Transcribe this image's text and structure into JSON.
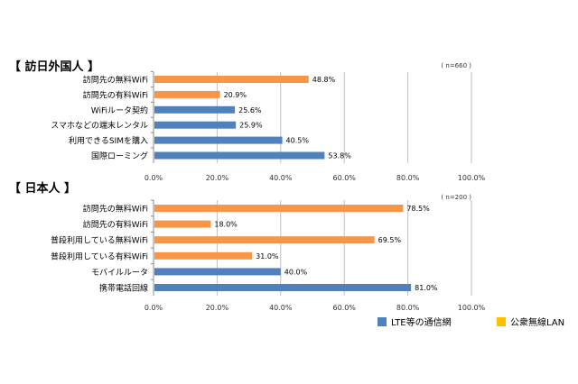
{
  "colors": {
    "lte": "#4F81BD",
    "wifi": "#F79646",
    "legend_wifi": "#FFC000",
    "grid": "#BFBFBF"
  },
  "legend": [
    {
      "label": "LTE等の通信網",
      "color": "#4F81BD"
    },
    {
      "label": "公衆無線LAN",
      "color": "#FFC000"
    }
  ],
  "chart_data": [
    {
      "type": "bar",
      "orientation": "horizontal",
      "title": "【 訪日外国人 】",
      "note": "( n=660 )",
      "categories": [
        "訪問先の無料WiFi",
        "訪問先の有料WiFi",
        "WiFiルータ契約",
        "スマホなどの端末レンタル",
        "利用できるSIMを購入",
        "国際ローミング"
      ],
      "values": [
        48.8,
        20.9,
        25.6,
        25.9,
        40.5,
        53.8
      ],
      "groups": [
        "wifi",
        "wifi",
        "lte",
        "lte",
        "lte",
        "lte"
      ],
      "data_labels": [
        "48.8%",
        "20.9%",
        "25.6%",
        "25.9%",
        "40.5%",
        "53.8%"
      ],
      "xlim": [
        0,
        100
      ],
      "xticks": [
        "0.0%",
        "20.0%",
        "40.0%",
        "60.0%",
        "80.0%",
        "100.0%"
      ],
      "grid": true
    },
    {
      "type": "bar",
      "orientation": "horizontal",
      "title": "【 日本人 】",
      "note": "( n=200 )",
      "categories": [
        "訪問先の無料WiFi",
        "訪問先の有料WiFi",
        "普段利用している無料WiFi",
        "普段利用している有料WiFi",
        "モバイルルータ",
        "携帯電話回線"
      ],
      "values": [
        78.5,
        18.0,
        69.5,
        31.0,
        40.0,
        81.0
      ],
      "groups": [
        "wifi",
        "wifi",
        "wifi",
        "wifi",
        "lte",
        "lte"
      ],
      "data_labels": [
        "78.5%",
        "18.0%",
        "69.5%",
        "31.0%",
        "40.0%",
        "81.0%"
      ],
      "xlim": [
        0,
        100
      ],
      "xticks": [
        "0.0%",
        "20.0%",
        "40.0%",
        "60.0%",
        "80.0%",
        "100.0%"
      ],
      "grid": true
    }
  ]
}
